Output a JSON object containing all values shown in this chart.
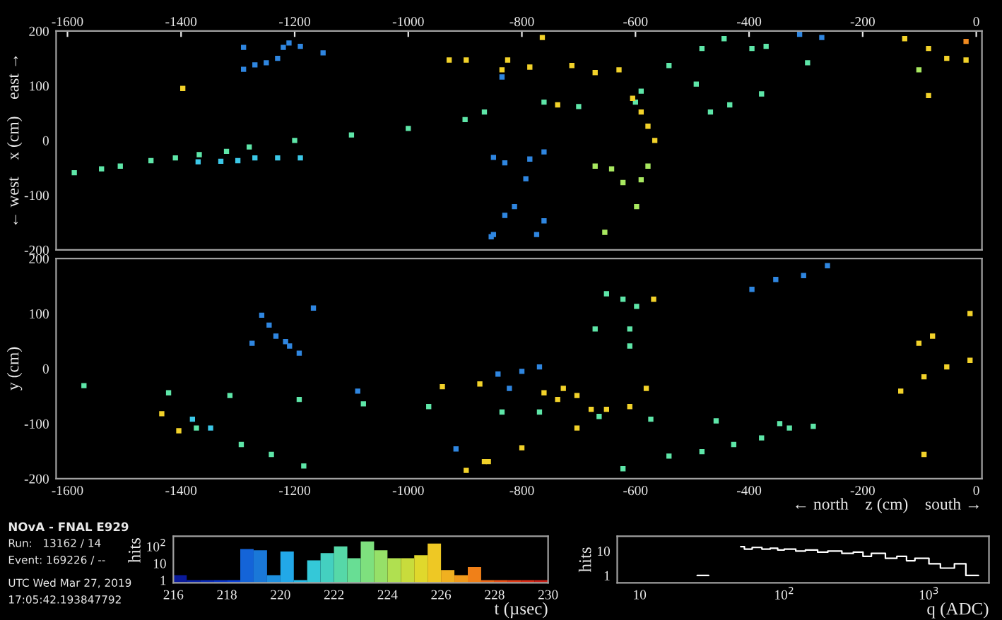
{
  "chart_data": [
    {
      "type": "scatter",
      "ylabel": "← west    x (cm)    east →",
      "xlim": [
        -1620,
        10
      ],
      "ylim": [
        -200,
        200
      ],
      "xticks": [
        -1600,
        -1400,
        -1200,
        -1000,
        -800,
        -600,
        -400,
        -200,
        0
      ],
      "yticks": [
        -200,
        -100,
        0,
        100,
        200
      ],
      "marker": "square",
      "grid": false,
      "annotations": [
        "NOvA - FNAL E929",
        "Run:   13162 / 14",
        "Event: 169226 / --",
        "UTC Wed Mar 27, 2019",
        "17:05:42.193847792"
      ],
      "series": [
        {
          "color": "#2f86e0",
          "x": [
            -1290,
            -1290,
            -1270,
            -1250,
            -1230,
            -1220,
            -1210,
            -1190,
            -1150,
            -835,
            -850,
            -761,
            -786,
            -830,
            -793,
            -813,
            -830,
            -854,
            -761,
            -774,
            -850,
            -311,
            -272
          ],
          "values": [
            170,
            130,
            138,
            142,
            150,
            170,
            178,
            172,
            160,
            116,
            -31,
            -21,
            -34,
            -41,
            -70,
            -121,
            -137,
            -176,
            -147,
            -172,
            -172,
            194,
            188
          ]
        },
        {
          "color": "#3cc8e8",
          "x": [
            -1370,
            -1330,
            -1300,
            -1270,
            -1230,
            -1190
          ],
          "values": [
            -39,
            -38,
            -37,
            -32,
            -32,
            -32
          ]
        },
        {
          "color": "#5ee6a8",
          "x": [
            -1588,
            -1540,
            -1507,
            -1453,
            -1410,
            -1368,
            -1320,
            -1280,
            -1200,
            -1100,
            -1000,
            -900,
            -866,
            -761,
            -700,
            -600,
            -468,
            -434,
            -444,
            -483,
            -395,
            -370,
            -297,
            -541,
            -590,
            -493,
            -378
          ],
          "values": [
            -59,
            -52,
            -47,
            -37,
            -32,
            -26,
            -20,
            -12,
            0,
            10,
            22,
            38,
            52,
            70,
            62,
            70,
            52,
            65,
            186,
            168,
            168,
            172,
            142,
            137,
            90,
            103,
            85
          ]
        },
        {
          "color": "#a8e860",
          "x": [
            -671,
            -642,
            -622,
            -590,
            -578,
            -598,
            -654,
            -101
          ],
          "values": [
            -47,
            -52,
            -77,
            -72,
            -47,
            -121,
            -168,
            129
          ]
        },
        {
          "color": "#f2d22a",
          "x": [
            -764,
            -712,
            -671,
            -629,
            -825,
            -786,
            -737,
            -605,
            -590,
            -578,
            -566,
            -928,
            -898,
            -835,
            -1397,
            -126,
            -84,
            -18,
            -52,
            -84
          ],
          "values": [
            188,
            137,
            124,
            129,
            147,
            134,
            65,
            77,
            52,
            26,
            0,
            147,
            147,
            129,
            95,
            186,
            168,
            147,
            150,
            82
          ]
        },
        {
          "color": "#f08a20",
          "x": [
            -18
          ],
          "values": [
            181
          ]
        }
      ]
    },
    {
      "type": "scatter",
      "xlabel": "← north    z (cm)    south →",
      "ylabel": "y (cm)",
      "xlim": [
        -1620,
        10
      ],
      "ylim": [
        -200,
        200
      ],
      "xticks": [
        -1600,
        -1400,
        -1200,
        -1000,
        -800,
        -600,
        -400,
        -200,
        0
      ],
      "yticks": [
        -200,
        -100,
        0,
        100,
        200
      ],
      "marker": "square",
      "grid": false,
      "series": [
        {
          "color": "#2f86e0",
          "x": [
            -1275,
            -1258,
            -1245,
            -1233,
            -1216,
            -1209,
            -1192,
            -1167,
            -1089,
            -916,
            -842,
            -800,
            -769,
            -822,
            -395,
            -353,
            -304,
            -262
          ],
          "values": [
            46,
            97,
            79,
            59,
            49,
            41,
            28,
            110,
            -41,
            -146,
            -10,
            -5,
            3,
            -36,
            144,
            162,
            169,
            187
          ]
        },
        {
          "color": "#3cc8e8",
          "x": [
            -1380,
            -1348
          ],
          "values": [
            -92,
            -108
          ]
        },
        {
          "color": "#5ee6a8",
          "x": [
            -1571,
            -1422,
            -1314,
            -1192,
            -1079,
            -964,
            -835,
            -769,
            -664,
            -573,
            -458,
            -346,
            -287,
            -1373,
            -1294,
            -1241,
            -1184,
            -622,
            -541,
            -483,
            -427,
            -378,
            -329,
            -651,
            -622,
            -598,
            -610,
            -610,
            -671
          ],
          "values": [
            -31,
            -44,
            -49,
            -56,
            -64,
            -69,
            -79,
            -79,
            -87,
            -92,
            -95,
            -100,
            -105,
            -108,
            -138,
            -156,
            -177,
            -182,
            -159,
            -151,
            -138,
            -126,
            -108,
            136,
            126,
            113,
            72,
            41,
            72
          ]
        },
        {
          "color": "#f2d22a",
          "x": [
            -866,
            -800,
            -703,
            -898,
            -859,
            -727,
            -761,
            -737,
            -703,
            -678,
            -651,
            -610,
            -581,
            -940,
            -874,
            -1434,
            -1404,
            -568,
            -11,
            -11,
            -52,
            -92,
            -133,
            -77,
            -101,
            -92
          ],
          "values": [
            -169,
            -144,
            -108,
            -185,
            -169,
            -36,
            -44,
            -56,
            -49,
            -74,
            -74,
            -69,
            -36,
            -33,
            -28,
            -82,
            -113,
            126,
            100,
            15,
            3,
            -15,
            -41,
            59,
            46,
            -156
          ]
        }
      ]
    },
    {
      "type": "histogram",
      "xlabel": "t (µsec)",
      "ylabel": "hits",
      "log": "y",
      "xlim": [
        216,
        230
      ],
      "ylim": [
        0.7,
        400
      ],
      "xticks": [
        216,
        218,
        220,
        222,
        224,
        226,
        228,
        230
      ],
      "yticks": [
        1,
        10,
        {
          "value": 100,
          "label": "10$^{2}$"
        }
      ],
      "bins": [
        216,
        216.5,
        217,
        217.5,
        218,
        218.5,
        219,
        219.5,
        220,
        220.5,
        221,
        221.5,
        222,
        222.5,
        223,
        223.5,
        224,
        224.5,
        225,
        225.5,
        226,
        226.5,
        227,
        227.5,
        228,
        228.5,
        229,
        229.5,
        230
      ],
      "values": [
        2,
        1,
        1,
        1,
        1,
        70,
        60,
        2,
        50,
        1,
        15,
        40,
        100,
        20,
        200,
        60,
        20,
        20,
        30,
        150,
        4,
        2,
        6,
        1,
        1,
        1,
        1,
        1
      ],
      "colors": [
        "#0a1a9a",
        "#0a22a8",
        "#0a2ab8",
        "#0a34c8",
        "#0a40d8",
        "#1464d8",
        "#1a78d8",
        "#1e90e0",
        "#22a8e8",
        "#28bce8",
        "#34c8d8",
        "#44d0c0",
        "#56d8a8",
        "#68de94",
        "#7ee07e",
        "#96e068",
        "#b0e050",
        "#c8dc3c",
        "#e0d82c",
        "#eec824",
        "#f0b020",
        "#f09a1c",
        "#f08018",
        "#ec6818",
        "#e85018",
        "#e03c18",
        "#d82c18",
        "#c82018"
      ]
    },
    {
      "type": "step",
      "xlabel": "q (ADC)",
      "ylabel": "hits",
      "log": "xy",
      "xlim": [
        7,
        2600
      ],
      "ylim": [
        0.5,
        40
      ],
      "xticks": [
        10,
        {
          "value": 100,
          "label": "10$^{2}$"
        },
        {
          "value": 1000,
          "label": "10$^{3}$"
        }
      ],
      "yticks": [
        1,
        10
      ],
      "series": [
        {
          "color": "#ffffff",
          "x": [
            25,
            30
          ],
          "values": [
            1,
            1
          ]
        },
        {
          "color": "#ffffff",
          "x": [
            50,
            53,
            60,
            70,
            80,
            90,
            100,
            120,
            140,
            170,
            200,
            250,
            300,
            350,
            400,
            500,
            600,
            700,
            800,
            1000,
            1200,
            1500,
            1800,
            2200
          ],
          "values": [
            15,
            12,
            14,
            12,
            13,
            11,
            12,
            10,
            11,
            9,
            10,
            8,
            9,
            6,
            8,
            5,
            6,
            4,
            5,
            3,
            2,
            3,
            1,
            1
          ]
        }
      ]
    }
  ]
}
